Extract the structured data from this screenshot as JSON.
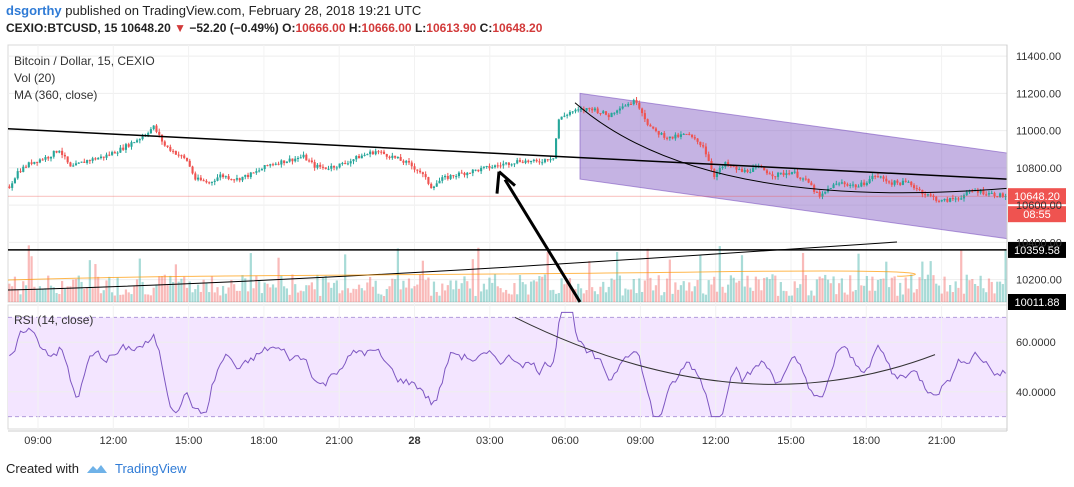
{
  "header": {
    "author": "dsgorthy",
    "published_text": "published on TradingView.com, February 28, 2018 19:21 UTC",
    "symbol": "CEXIO:BTCUSD",
    "interval": "15",
    "last": "10648.20",
    "change": "−52.20 (−0.49%)",
    "open_label": "O:",
    "open": "10666.00",
    "high_label": "H:",
    "high": "10666.00",
    "low_label": "L:",
    "low": "10613.90",
    "close_label": "C:",
    "close": "10648.20",
    "down_color": "#d23a3a"
  },
  "legend": {
    "title": "Bitcoin / Dollar, 15, CEXIO",
    "volume": "Vol (20)",
    "ma": "MA (360, close)",
    "rsi": "RSI (14, close)"
  },
  "footer": {
    "created_with": "Created with",
    "brand": "TradingView",
    "brand_icon": "tradingview-logo-icon"
  },
  "chart_data": {
    "type": "candlestick",
    "x_tick_labels": [
      "09:00",
      "12:00",
      "15:00",
      "18:00",
      "21:00",
      "28",
      "03:00",
      "06:00",
      "09:00",
      "12:00",
      "15:00",
      "18:00",
      "21:00"
    ],
    "price_axis": {
      "ticks": [
        11400,
        11200,
        11000,
        10800,
        10600,
        10400,
        10200
      ],
      "tick_labels": [
        "11400.00",
        "11200.00",
        "11000.00",
        "10800.00",
        "10600.00",
        "10400.00",
        "10200.00"
      ],
      "range": [
        10080,
        11460
      ]
    },
    "price_badges": [
      {
        "label": "10648.20",
        "color": "#ef5350"
      },
      {
        "label": "08:55",
        "color": "#ef5350"
      },
      {
        "label": "10359.58",
        "color": "#000000"
      },
      {
        "label": "10011.88",
        "color": "#000000"
      }
    ],
    "rsi_axis": {
      "ticks": [
        60,
        40
      ],
      "tick_labels": [
        "60.0000",
        "40.0000"
      ],
      "band": [
        30,
        70
      ],
      "range": [
        25,
        75
      ]
    },
    "colors": {
      "up": "#26a69a",
      "down": "#ef5350",
      "channel": "#7e57c2",
      "ma": "#000000",
      "rsi": "#7e57c2",
      "rsi_band": "#f3e5ff"
    },
    "price_keypoints": [
      [
        0,
        10700
      ],
      [
        3,
        10780
      ],
      [
        8,
        10830
      ],
      [
        14,
        10860
      ],
      [
        18,
        10900
      ],
      [
        22,
        10800
      ],
      [
        28,
        10840
      ],
      [
        34,
        10860
      ],
      [
        40,
        10900
      ],
      [
        47,
        10960
      ],
      [
        52,
        11020
      ],
      [
        56,
        10920
      ],
      [
        60,
        10880
      ],
      [
        64,
        10840
      ],
      [
        67,
        10740
      ],
      [
        72,
        10720
      ],
      [
        76,
        10760
      ],
      [
        82,
        10740
      ],
      [
        88,
        10770
      ],
      [
        94,
        10820
      ],
      [
        100,
        10840
      ],
      [
        106,
        10860
      ],
      [
        110,
        10810
      ],
      [
        114,
        10800
      ],
      [
        120,
        10820
      ],
      [
        126,
        10860
      ],
      [
        132,
        10890
      ],
      [
        138,
        10860
      ],
      [
        144,
        10820
      ],
      [
        148,
        10780
      ],
      [
        152,
        10700
      ],
      [
        156,
        10740
      ],
      [
        160,
        10760
      ],
      [
        166,
        10780
      ],
      [
        172,
        10800
      ],
      [
        178,
        10820
      ],
      [
        184,
        10840
      ],
      [
        190,
        10830
      ],
      [
        196,
        10860
      ],
      [
        198,
        11060
      ],
      [
        202,
        11100
      ],
      [
        210,
        11120
      ],
      [
        216,
        11080
      ],
      [
        220,
        11130
      ],
      [
        226,
        11160
      ],
      [
        230,
        11040
      ],
      [
        232,
        11000
      ],
      [
        238,
        10960
      ],
      [
        244,
        10980
      ],
      [
        250,
        10920
      ],
      [
        254,
        10760
      ],
      [
        258,
        10820
      ],
      [
        264,
        10780
      ],
      [
        270,
        10800
      ],
      [
        276,
        10760
      ],
      [
        282,
        10780
      ],
      [
        288,
        10720
      ],
      [
        292,
        10640
      ],
      [
        296,
        10700
      ],
      [
        300,
        10720
      ],
      [
        306,
        10700
      ],
      [
        312,
        10760
      ],
      [
        318,
        10720
      ],
      [
        324,
        10720
      ],
      [
        330,
        10660
      ],
      [
        336,
        10620
      ],
      [
        342,
        10640
      ],
      [
        348,
        10680
      ],
      [
        354,
        10660
      ],
      [
        358,
        10650
      ]
    ]
  }
}
